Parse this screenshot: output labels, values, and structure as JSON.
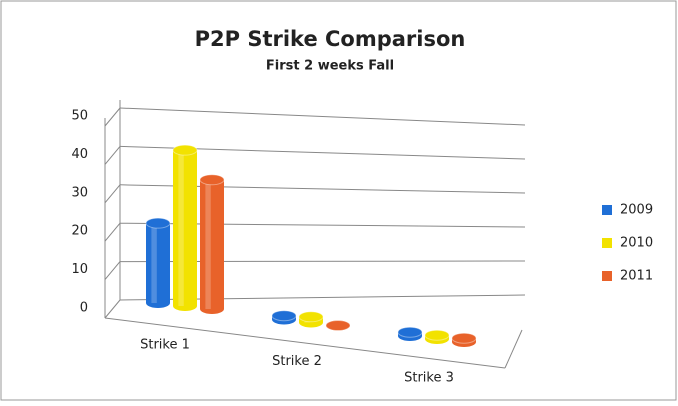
{
  "chart_data": {
    "type": "bar3d",
    "title": "P2P Strike Comparison",
    "subtitle": "First 2 weeks Fall",
    "categories": [
      "Strike 1",
      "Strike 2",
      "Strike 3"
    ],
    "series": [
      {
        "name": "2009",
        "color": "#1f6fd6",
        "values": [
          21,
          1,
          1
        ]
      },
      {
        "name": "2010",
        "color": "#f2e200",
        "values": [
          41,
          1.5,
          1
        ]
      },
      {
        "name": "2011",
        "color": "#e8622a",
        "values": [
          34,
          0,
          1
        ]
      }
    ],
    "ylim": [
      0,
      50
    ],
    "yticks": [
      0,
      10,
      20,
      30,
      40,
      50
    ],
    "grid": true,
    "legend": "right"
  }
}
